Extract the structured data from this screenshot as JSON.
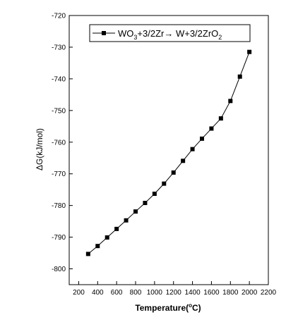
{
  "chart_data": {
    "type": "line",
    "xlabel_main": "Temperature(",
    "xlabel_sup": "o",
    "xlabel_end": "C)",
    "ylabel": "ΔG(kJ/mol)",
    "xlim": [
      100,
      2200
    ],
    "ylim": [
      -805,
      -720
    ],
    "x_ticks": [
      200,
      400,
      600,
      800,
      1000,
      1200,
      1400,
      1600,
      1800,
      2000,
      2200
    ],
    "y_ticks": [
      -720,
      -730,
      -740,
      -750,
      -760,
      -770,
      -780,
      -790,
      -800
    ],
    "grid": false,
    "legend_position": "top-right",
    "legend": {
      "parts": [
        "WO",
        "3",
        "+3/2Zr",
        "→",
        " W+3/2ZrO",
        "2"
      ]
    },
    "series": [
      {
        "name": "WO3+3/2Zr→ W+3/2ZrO2",
        "x": [
          300,
          400,
          500,
          600,
          700,
          800,
          900,
          1000,
          1100,
          1200,
          1300,
          1400,
          1500,
          1600,
          1700,
          1800,
          1900,
          2000
        ],
        "y": [
          -795.3,
          -792.8,
          -790.1,
          -787.4,
          -784.7,
          -781.9,
          -779.2,
          -776.3,
          -773.1,
          -769.6,
          -765.9,
          -762.2,
          -758.9,
          -755.7,
          -752.5,
          -747.0,
          -739.3,
          -731.5
        ]
      }
    ]
  }
}
